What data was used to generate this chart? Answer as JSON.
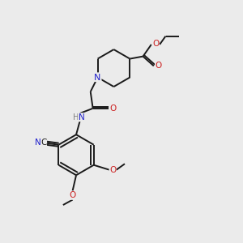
{
  "bg": "#ebebeb",
  "bond_color": "#1a1a1a",
  "N_color": "#2020cc",
  "O_color": "#cc2020",
  "H_color": "#808080",
  "C_color": "#1a1a1a",
  "bond_lw": 1.4,
  "figsize": [
    3.0,
    3.0
  ],
  "dpi": 100,
  "xlim": [
    0,
    10
  ],
  "ylim": [
    0,
    10
  ]
}
